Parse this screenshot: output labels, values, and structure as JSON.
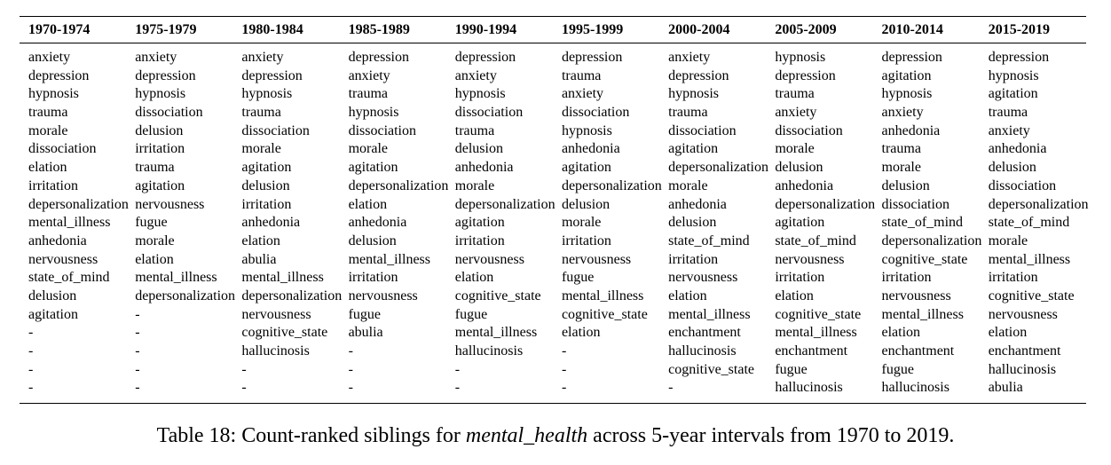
{
  "table": {
    "headers": [
      "1970-1974",
      "1975-1979",
      "1980-1984",
      "1985-1989",
      "1990-1994",
      "1995-1999",
      "2000-2004",
      "2005-2009",
      "2010-2014",
      "2015-2019"
    ],
    "columns": [
      [
        "anxiety",
        "depression",
        "hypnosis",
        "trauma",
        "morale",
        "dissociation",
        "elation",
        "irritation",
        "depersonalization",
        "mental_illness",
        "anhedonia",
        "nervousness",
        "state_of_mind",
        "delusion",
        "agitation",
        "-",
        "-",
        "-",
        "-"
      ],
      [
        "anxiety",
        "depression",
        "hypnosis",
        "dissociation",
        "delusion",
        "irritation",
        "trauma",
        "agitation",
        "nervousness",
        "fugue",
        "morale",
        "elation",
        "mental_illness",
        "depersonalization",
        "-",
        "-",
        "-",
        "-",
        "-"
      ],
      [
        "anxiety",
        "depression",
        "hypnosis",
        "trauma",
        "dissociation",
        "morale",
        "agitation",
        "delusion",
        "irritation",
        "anhedonia",
        "elation",
        "abulia",
        "mental_illness",
        "depersonalization",
        "nervousness",
        "cognitive_state",
        "hallucinosis",
        "-",
        "-"
      ],
      [
        "depression",
        "anxiety",
        "trauma",
        "hypnosis",
        "dissociation",
        "morale",
        "agitation",
        "depersonalization",
        "elation",
        "anhedonia",
        "delusion",
        "mental_illness",
        "irritation",
        "nervousness",
        "fugue",
        "abulia",
        "-",
        "-",
        "-"
      ],
      [
        "depression",
        "anxiety",
        "hypnosis",
        "dissociation",
        "trauma",
        "delusion",
        "anhedonia",
        "morale",
        "depersonalization",
        "agitation",
        "irritation",
        "nervousness",
        "elation",
        "cognitive_state",
        "fugue",
        "mental_illness",
        "hallucinosis",
        "-",
        "-"
      ],
      [
        "depression",
        "trauma",
        "anxiety",
        "dissociation",
        "hypnosis",
        "anhedonia",
        "agitation",
        "depersonalization",
        "delusion",
        "morale",
        "irritation",
        "nervousness",
        "fugue",
        "mental_illness",
        "cognitive_state",
        "elation",
        "-",
        "-",
        "-"
      ],
      [
        "anxiety",
        "depression",
        "hypnosis",
        "trauma",
        "dissociation",
        "agitation",
        "depersonalization",
        "morale",
        "anhedonia",
        "delusion",
        "state_of_mind",
        "irritation",
        "nervousness",
        "elation",
        "mental_illness",
        "enchantment",
        "hallucinosis",
        "cognitive_state",
        "-"
      ],
      [
        "hypnosis",
        "depression",
        "trauma",
        "anxiety",
        "dissociation",
        "morale",
        "delusion",
        "anhedonia",
        "depersonalization",
        "agitation",
        "state_of_mind",
        "nervousness",
        "irritation",
        "elation",
        "cognitive_state",
        "mental_illness",
        "enchantment",
        "fugue",
        "hallucinosis"
      ],
      [
        "depression",
        "agitation",
        "hypnosis",
        "anxiety",
        "anhedonia",
        "trauma",
        "morale",
        "delusion",
        "dissociation",
        "state_of_mind",
        "depersonalization",
        "cognitive_state",
        "irritation",
        "nervousness",
        "mental_illness",
        "elation",
        "enchantment",
        "fugue",
        "hallucinosis"
      ],
      [
        "depression",
        "hypnosis",
        "agitation",
        "trauma",
        "anxiety",
        "anhedonia",
        "delusion",
        "dissociation",
        "depersonalization",
        "state_of_mind",
        "morale",
        "mental_illness",
        "irritation",
        "cognitive_state",
        "nervousness",
        "elation",
        "enchantment",
        "hallucinosis",
        "abulia"
      ]
    ]
  },
  "caption": {
    "prefix": "Table 18: Count-ranked siblings for ",
    "term": "mental_health",
    "suffix": " across 5-year intervals from 1970 to 2019."
  }
}
